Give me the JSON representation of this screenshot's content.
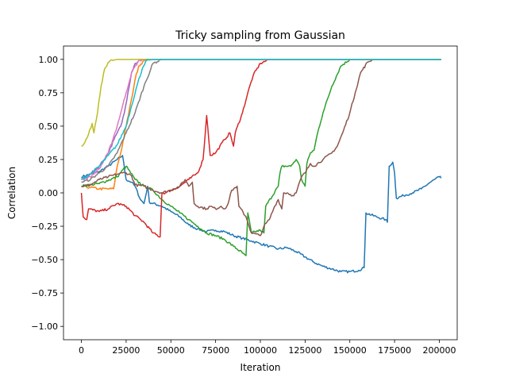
{
  "chart_data": {
    "type": "line",
    "title": "Tricky sampling from Gaussian",
    "xlabel": "Iteration",
    "ylabel": "Correlation",
    "xlim": [
      -10000,
      210000
    ],
    "ylim": [
      -1.1,
      1.1
    ],
    "xticks": [
      0,
      25000,
      50000,
      75000,
      100000,
      125000,
      150000,
      175000,
      200000
    ],
    "xtick_labels": [
      "0",
      "25000",
      "50000",
      "75000",
      "100000",
      "125000",
      "150000",
      "175000",
      "200000"
    ],
    "yticks": [
      -1.0,
      -0.75,
      -0.5,
      -0.25,
      0.0,
      0.25,
      0.5,
      0.75,
      1.0
    ],
    "ytick_labels": [
      "−1.00",
      "−0.75",
      "−0.50",
      "−0.25",
      "0.00",
      "0.25",
      "0.50",
      "0.75",
      "1.00"
    ],
    "grid": false,
    "legend": "none",
    "series": [
      {
        "color": "#1f77b4",
        "points": [
          [
            0,
            0.12
          ],
          [
            5000,
            0.14
          ],
          [
            10000,
            0.16
          ],
          [
            15000,
            0.2
          ],
          [
            20000,
            0.25
          ],
          [
            23000,
            0.28
          ],
          [
            25000,
            0.1
          ],
          [
            28000,
            0.08
          ],
          [
            30000,
            0.05
          ],
          [
            33000,
            -0.05
          ],
          [
            35000,
            -0.08
          ],
          [
            37000,
            0.05
          ],
          [
            38000,
            -0.07
          ],
          [
            45000,
            -0.1
          ],
          [
            50000,
            -0.14
          ],
          [
            55000,
            -0.18
          ],
          [
            60000,
            -0.24
          ],
          [
            65000,
            -0.27
          ],
          [
            70000,
            -0.29
          ],
          [
            75000,
            -0.28
          ],
          [
            80000,
            -0.29
          ],
          [
            85000,
            -0.32
          ],
          [
            90000,
            -0.34
          ],
          [
            95000,
            -0.36
          ],
          [
            100000,
            -0.38
          ],
          [
            105000,
            -0.4
          ],
          [
            110000,
            -0.42
          ],
          [
            115000,
            -0.41
          ],
          [
            120000,
            -0.44
          ],
          [
            125000,
            -0.48
          ],
          [
            130000,
            -0.52
          ],
          [
            135000,
            -0.55
          ],
          [
            140000,
            -0.57
          ],
          [
            145000,
            -0.59
          ],
          [
            150000,
            -0.59
          ],
          [
            155000,
            -0.58
          ],
          [
            158000,
            -0.56
          ],
          [
            159000,
            -0.15
          ],
          [
            165000,
            -0.18
          ],
          [
            170000,
            -0.2
          ],
          [
            171000,
            -0.22
          ],
          [
            172000,
            0.2
          ],
          [
            174000,
            0.23
          ],
          [
            175000,
            0.15
          ],
          [
            176000,
            -0.04
          ],
          [
            180000,
            -0.02
          ],
          [
            185000,
            0.0
          ],
          [
            190000,
            0.03
          ],
          [
            195000,
            0.08
          ],
          [
            200000,
            0.12
          ],
          [
            201000,
            0.11
          ]
        ]
      },
      {
        "color": "#ff7f0e",
        "points": [
          [
            0,
            0.05
          ],
          [
            5000,
            0.04
          ],
          [
            10000,
            0.03
          ],
          [
            15000,
            0.03
          ],
          [
            18000,
            0.03
          ],
          [
            20000,
            0.2
          ],
          [
            22000,
            0.3
          ],
          [
            25000,
            0.5
          ],
          [
            28000,
            0.7
          ],
          [
            30000,
            0.85
          ],
          [
            32000,
            0.95
          ],
          [
            35000,
            0.99
          ],
          [
            38000,
            1.0
          ],
          [
            201000,
            1.0
          ]
        ]
      },
      {
        "color": "#2ca02c",
        "points": [
          [
            0,
            0.05
          ],
          [
            10000,
            0.07
          ],
          [
            20000,
            0.12
          ],
          [
            25000,
            0.2
          ],
          [
            30000,
            0.1
          ],
          [
            35000,
            0.05
          ],
          [
            40000,
            0.02
          ],
          [
            45000,
            -0.05
          ],
          [
            50000,
            -0.1
          ],
          [
            55000,
            -0.15
          ],
          [
            60000,
            -0.2
          ],
          [
            65000,
            -0.25
          ],
          [
            70000,
            -0.3
          ],
          [
            75000,
            -0.32
          ],
          [
            80000,
            -0.35
          ],
          [
            85000,
            -0.4
          ],
          [
            90000,
            -0.45
          ],
          [
            92000,
            -0.47
          ],
          [
            93000,
            -0.15
          ],
          [
            95000,
            -0.3
          ],
          [
            100000,
            -0.28
          ],
          [
            102000,
            -0.3
          ],
          [
            103000,
            -0.1
          ],
          [
            110000,
            0.05
          ],
          [
            111000,
            0.15
          ],
          [
            112000,
            0.2
          ],
          [
            117000,
            0.2
          ],
          [
            120000,
            0.25
          ],
          [
            122000,
            0.2
          ],
          [
            123000,
            0.1
          ],
          [
            125000,
            0.05
          ],
          [
            126000,
            0.22
          ],
          [
            128000,
            0.3
          ],
          [
            130000,
            0.32
          ],
          [
            132000,
            0.45
          ],
          [
            135000,
            0.6
          ],
          [
            140000,
            0.8
          ],
          [
            145000,
            0.95
          ],
          [
            150000,
            1.0
          ],
          [
            201000,
            1.0
          ]
        ]
      },
      {
        "color": "#d62728",
        "points": [
          [
            0,
            0.0
          ],
          [
            1000,
            -0.18
          ],
          [
            3000,
            -0.2
          ],
          [
            4000,
            -0.12
          ],
          [
            10000,
            -0.14
          ],
          [
            15000,
            -0.12
          ],
          [
            20000,
            -0.08
          ],
          [
            25000,
            -0.1
          ],
          [
            30000,
            -0.17
          ],
          [
            35000,
            -0.22
          ],
          [
            40000,
            -0.3
          ],
          [
            44000,
            -0.33
          ],
          [
            45000,
            0.0
          ],
          [
            47000,
            0.0
          ],
          [
            50000,
            0.02
          ],
          [
            55000,
            0.05
          ],
          [
            60000,
            0.1
          ],
          [
            65000,
            0.15
          ],
          [
            68000,
            0.25
          ],
          [
            70000,
            0.58
          ],
          [
            72000,
            0.28
          ],
          [
            75000,
            0.3
          ],
          [
            80000,
            0.4
          ],
          [
            83000,
            0.45
          ],
          [
            85000,
            0.35
          ],
          [
            86000,
            0.45
          ],
          [
            90000,
            0.6
          ],
          [
            93000,
            0.75
          ],
          [
            96000,
            0.88
          ],
          [
            100000,
            0.97
          ],
          [
            105000,
            1.0
          ],
          [
            201000,
            1.0
          ]
        ]
      },
      {
        "color": "#9467bd",
        "points": [
          [
            0,
            0.1
          ],
          [
            5000,
            0.14
          ],
          [
            10000,
            0.2
          ],
          [
            15000,
            0.3
          ],
          [
            20000,
            0.45
          ],
          [
            22000,
            0.5
          ],
          [
            24000,
            0.6
          ],
          [
            26000,
            0.75
          ],
          [
            28000,
            0.9
          ],
          [
            30000,
            0.97
          ],
          [
            33000,
            1.0
          ],
          [
            201000,
            1.0
          ]
        ]
      },
      {
        "color": "#8c564b",
        "points": [
          [
            0,
            0.05
          ],
          [
            5000,
            0.06
          ],
          [
            10000,
            0.1
          ],
          [
            15000,
            0.12
          ],
          [
            20000,
            0.14
          ],
          [
            23000,
            0.15
          ],
          [
            25000,
            0.15
          ],
          [
            28000,
            0.13
          ],
          [
            30000,
            0.06
          ],
          [
            35000,
            0.05
          ],
          [
            40000,
            0.02
          ],
          [
            45000,
            0.0
          ],
          [
            50000,
            0.02
          ],
          [
            55000,
            0.05
          ],
          [
            58000,
            0.1
          ],
          [
            60000,
            0.05
          ],
          [
            62000,
            0.08
          ],
          [
            63000,
            -0.08
          ],
          [
            65000,
            -0.1
          ],
          [
            70000,
            -0.12
          ],
          [
            72000,
            -0.1
          ],
          [
            75000,
            -0.12
          ],
          [
            78000,
            -0.1
          ],
          [
            80000,
            -0.12
          ],
          [
            82000,
            -0.08
          ],
          [
            84000,
            0.02
          ],
          [
            87000,
            0.05
          ],
          [
            88000,
            -0.1
          ],
          [
            92000,
            -0.18
          ],
          [
            93000,
            -0.22
          ],
          [
            95000,
            -0.3
          ],
          [
            100000,
            -0.32
          ],
          [
            102000,
            -0.25
          ],
          [
            105000,
            -0.2
          ],
          [
            108000,
            -0.1
          ],
          [
            110000,
            -0.05
          ],
          [
            112000,
            -0.12
          ],
          [
            113000,
            0.0
          ],
          [
            115000,
            0.0
          ],
          [
            118000,
            -0.02
          ],
          [
            120000,
            0.0
          ],
          [
            123000,
            0.12
          ],
          [
            125000,
            0.15
          ],
          [
            128000,
            0.22
          ],
          [
            130000,
            0.2
          ],
          [
            135000,
            0.25
          ],
          [
            140000,
            0.3
          ],
          [
            143000,
            0.35
          ],
          [
            146000,
            0.45
          ],
          [
            150000,
            0.6
          ],
          [
            153000,
            0.75
          ],
          [
            156000,
            0.9
          ],
          [
            160000,
            0.98
          ],
          [
            163000,
            1.0
          ],
          [
            201000,
            1.0
          ]
        ]
      },
      {
        "color": "#e377c2",
        "points": [
          [
            0,
            0.1
          ],
          [
            5000,
            0.12
          ],
          [
            10000,
            0.18
          ],
          [
            15000,
            0.3
          ],
          [
            20000,
            0.5
          ],
          [
            22000,
            0.6
          ],
          [
            25000,
            0.75
          ],
          [
            28000,
            0.9
          ],
          [
            32000,
            0.99
          ],
          [
            35000,
            1.0
          ],
          [
            201000,
            1.0
          ]
        ]
      },
      {
        "color": "#7f7f7f",
        "points": [
          [
            0,
            0.08
          ],
          [
            5000,
            0.1
          ],
          [
            10000,
            0.15
          ],
          [
            15000,
            0.2
          ],
          [
            20000,
            0.3
          ],
          [
            25000,
            0.45
          ],
          [
            30000,
            0.6
          ],
          [
            35000,
            0.8
          ],
          [
            40000,
            0.97
          ],
          [
            45000,
            1.0
          ],
          [
            201000,
            1.0
          ]
        ]
      },
      {
        "color": "#bcbd22",
        "points": [
          [
            0,
            0.35
          ],
          [
            2000,
            0.38
          ],
          [
            4000,
            0.44
          ],
          [
            6000,
            0.52
          ],
          [
            7000,
            0.45
          ],
          [
            9000,
            0.6
          ],
          [
            11000,
            0.8
          ],
          [
            13000,
            0.93
          ],
          [
            16000,
            0.99
          ],
          [
            20000,
            1.0
          ],
          [
            201000,
            1.0
          ]
        ]
      },
      {
        "color": "#17becf",
        "points": [
          [
            0,
            0.1
          ],
          [
            5000,
            0.14
          ],
          [
            10000,
            0.2
          ],
          [
            15000,
            0.28
          ],
          [
            20000,
            0.36
          ],
          [
            25000,
            0.5
          ],
          [
            28000,
            0.65
          ],
          [
            31000,
            0.8
          ],
          [
            34000,
            0.93
          ],
          [
            36000,
            0.99
          ],
          [
            40000,
            1.0
          ],
          [
            201000,
            1.0
          ]
        ]
      }
    ]
  }
}
